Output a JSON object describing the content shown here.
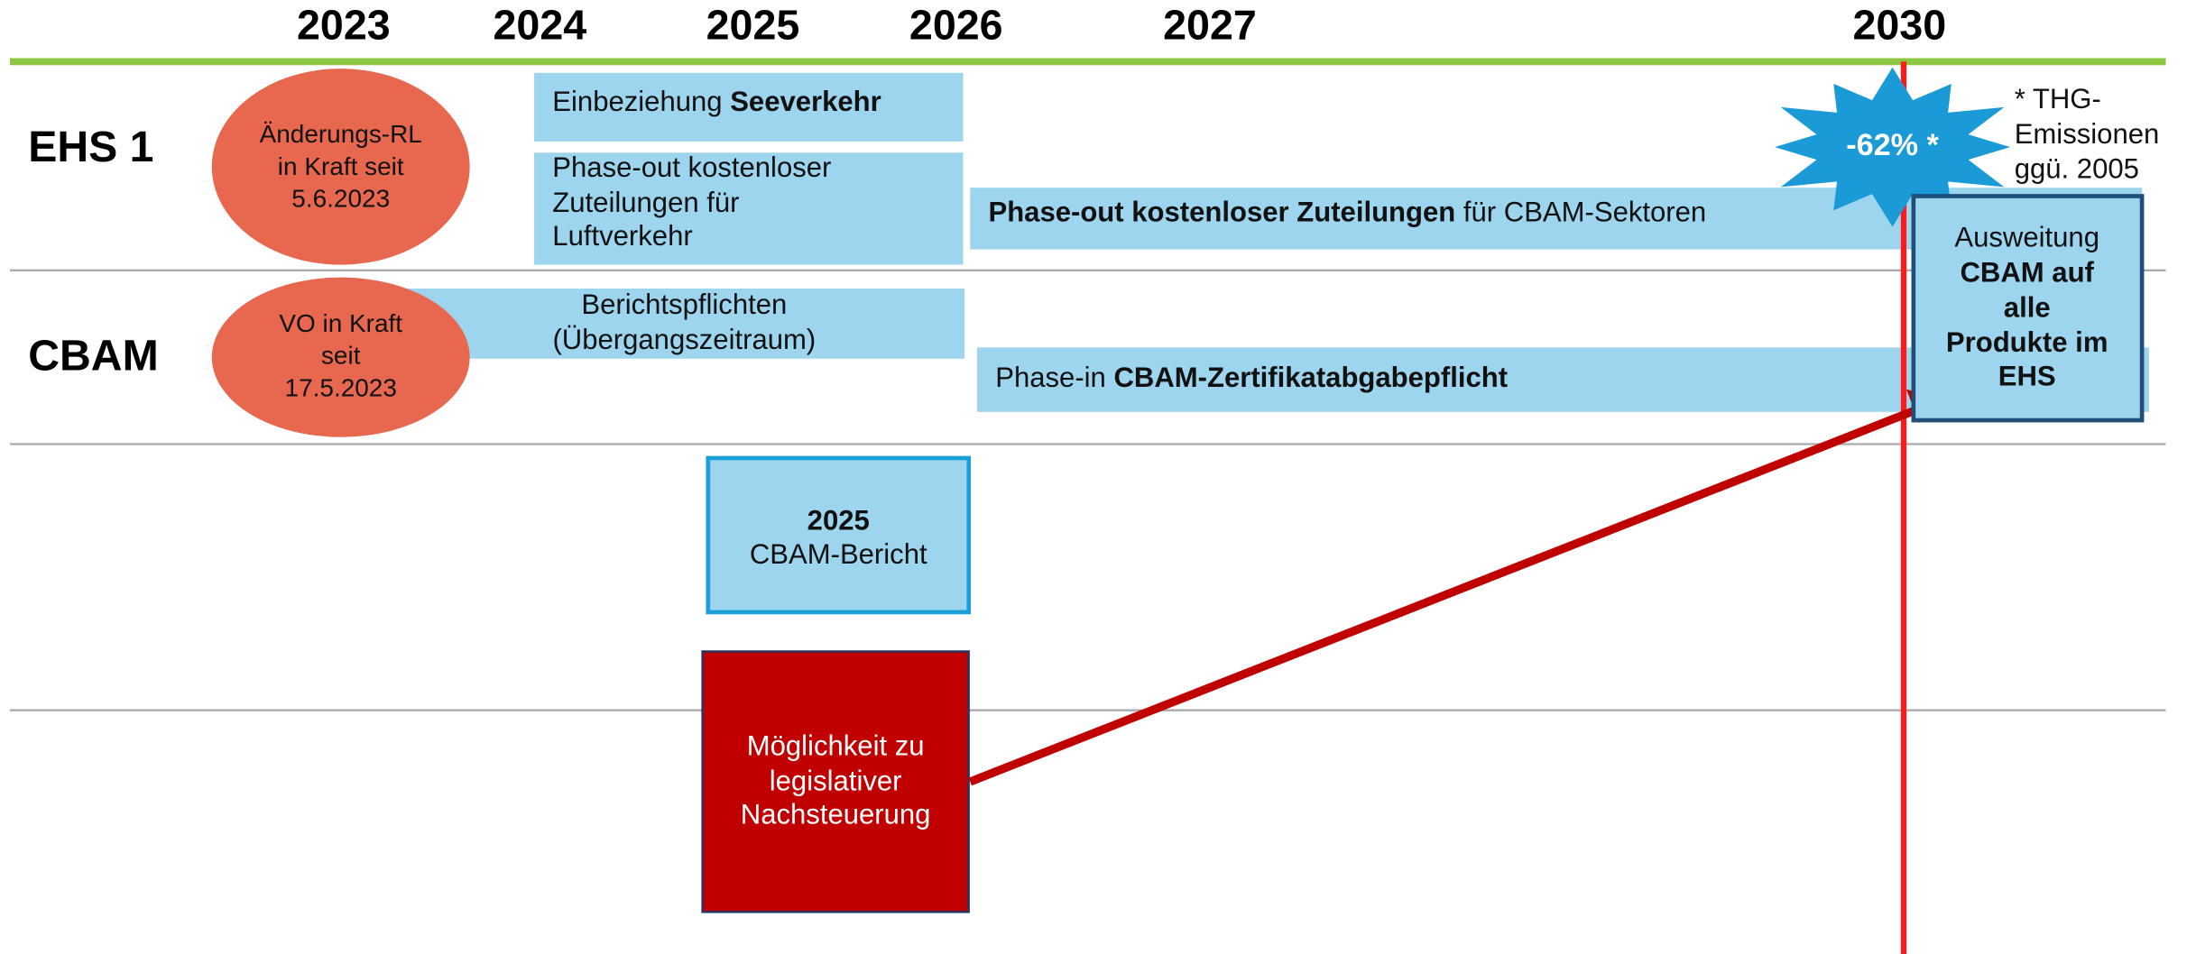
{
  "years": [
    "2023",
    "2024",
    "2025",
    "2026",
    "2027",
    "2030"
  ],
  "rows": [
    "EHS 1",
    "CBAM"
  ],
  "ellipses": [
    {
      "lines": [
        "Änderungs-RL",
        "in Kraft seit",
        "5.6.2023"
      ]
    },
    {
      "lines": [
        "VO in Kraft",
        "seit",
        "17.5.2023"
      ]
    }
  ],
  "boxes": [
    {
      "lines": [
        [
          {
            "text": "Einbeziehung ",
            "bold": false
          },
          {
            "text": "Seeverkehr",
            "bold": true
          }
        ]
      ]
    },
    {
      "lines": [
        [
          {
            "text": "Phase-out kostenloser",
            "bold": false
          }
        ],
        [
          {
            "text": "Zuteilungen für",
            "bold": false
          }
        ],
        [
          {
            "text": "Luftverkehr",
            "bold": false
          }
        ]
      ]
    },
    {
      "lines": [
        [
          {
            "text": "Phase-out kostenloser Zuteilungen",
            "bold": true
          },
          {
            "text": " für CBAM-Sektoren",
            "bold": false
          }
        ]
      ]
    },
    {
      "lines": [
        [
          {
            "text": "Berichtspflichten",
            "bold": false
          }
        ],
        [
          {
            "text": "(Übergangszeitraum)",
            "bold": false
          }
        ]
      ]
    },
    {
      "lines": [
        [
          {
            "text": "Phase-in ",
            "bold": false
          },
          {
            "text": "CBAM-Zertifikatabgabepflicht",
            "bold": true
          }
        ]
      ]
    },
    {
      "lines": [
        [
          {
            "text": "2025",
            "bold": true
          }
        ],
        [
          {
            "text": "CBAM-Bericht",
            "bold": false
          }
        ]
      ]
    },
    {
      "lines": [
        [
          {
            "text": "Möglichkeit zu",
            "bold": false
          }
        ],
        [
          {
            "text": "legislativer",
            "bold": false
          }
        ],
        [
          {
            "text": "Nachsteuerung",
            "bold": false
          }
        ]
      ]
    },
    {
      "lines": [
        [
          {
            "text": "Ausweitung",
            "bold": false
          }
        ],
        [
          {
            "text": "CBAM auf",
            "bold": true
          }
        ],
        [
          {
            "text": "alle",
            "bold": true
          }
        ],
        [
          {
            "text": "Produkte im",
            "bold": true
          }
        ],
        [
          {
            "text": "EHS",
            "bold": true
          }
        ]
      ]
    }
  ],
  "star": "-62% *",
  "note": [
    "* THG-",
    "Emissionen",
    "ggü. 2005"
  ]
}
